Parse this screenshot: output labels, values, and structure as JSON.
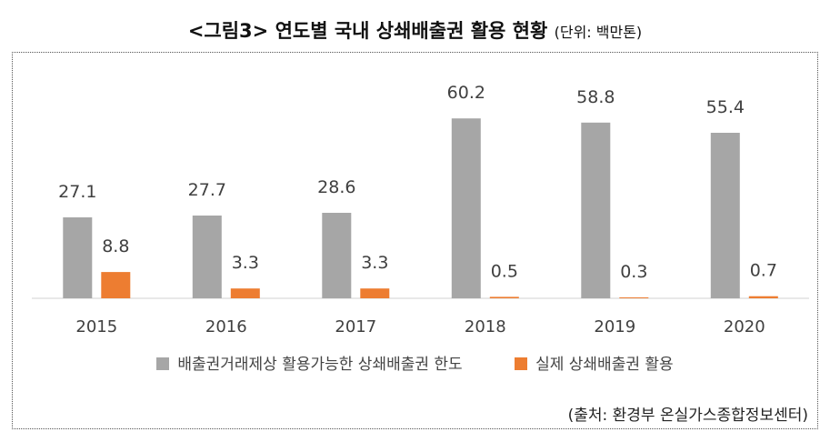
{
  "header": {
    "title": "<그림3> 연도별 국내 상쇄배출권 활용 현황",
    "unit": "(단위: 백만톤)"
  },
  "source": "(출처: 환경부 온실가스종합정보센터)",
  "chart_data": {
    "type": "bar",
    "title": "<그림3> 연도별 국내 상쇄배출권 활용 현황",
    "xlabel": "",
    "ylabel": "",
    "ylim": [
      0,
      70
    ],
    "grid": false,
    "legend_position": "bottom",
    "categories": [
      "2015",
      "2016",
      "2017",
      "2018",
      "2019",
      "2020"
    ],
    "series": [
      {
        "name": "배출권거래제상 활용가능한 상쇄배출권 한도",
        "color": "#a6a6a6",
        "values": [
          27.1,
          27.7,
          28.6,
          60.2,
          58.8,
          55.4
        ]
      },
      {
        "name": "실제 상쇄배출권 활용",
        "color": "#ed7d31",
        "values": [
          8.8,
          3.3,
          3.3,
          0.5,
          0.3,
          0.7
        ]
      }
    ]
  }
}
